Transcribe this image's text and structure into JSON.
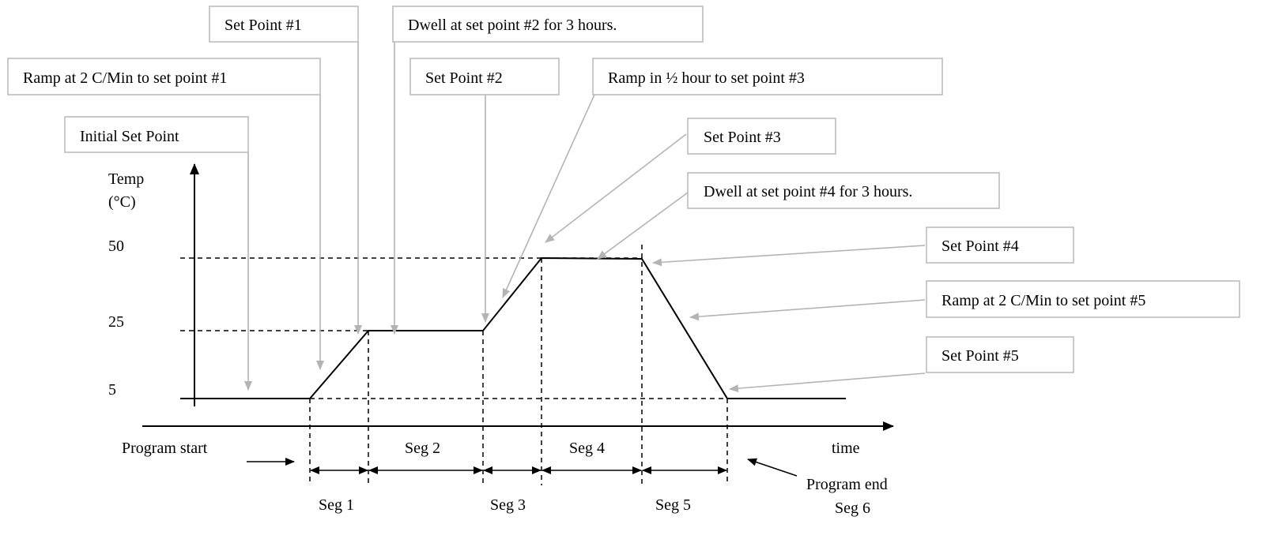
{
  "axes": {
    "y_label_line1": "Temp",
    "y_label_line2": "(°C)",
    "y_ticks": [
      "50",
      "25",
      "5"
    ],
    "x_label": "time"
  },
  "markers": {
    "program_start": "Program start",
    "program_end_line1": "Program end",
    "program_end_line2": "Seg 6"
  },
  "segments": {
    "seg1": "Seg 1",
    "seg2": "Seg 2",
    "seg3": "Seg 3",
    "seg4": "Seg 4",
    "seg5": "Seg 5"
  },
  "callouts": {
    "set_point_1": "Set Point #1",
    "dwell_sp2": "Dwell at set point #2 for 3 hours.",
    "ramp_sp1": "Ramp at 2 C/Min to set point #1",
    "set_point_2": "Set Point #2",
    "ramp_sp3": "Ramp in ½ hour  to set point #3",
    "initial_set_point": "Initial Set Point",
    "set_point_3": "Set Point #3",
    "dwell_sp4": "Dwell at set point #4 for 3 hours.",
    "set_point_4": "Set Point #4",
    "ramp_sp5": "Ramp at 2 C/Min to set point #5",
    "set_point_5": "Set Point #5"
  },
  "colors": {
    "leader": "#b4b4b4",
    "box_border": "#b8b8b8",
    "line": "#000000"
  }
}
